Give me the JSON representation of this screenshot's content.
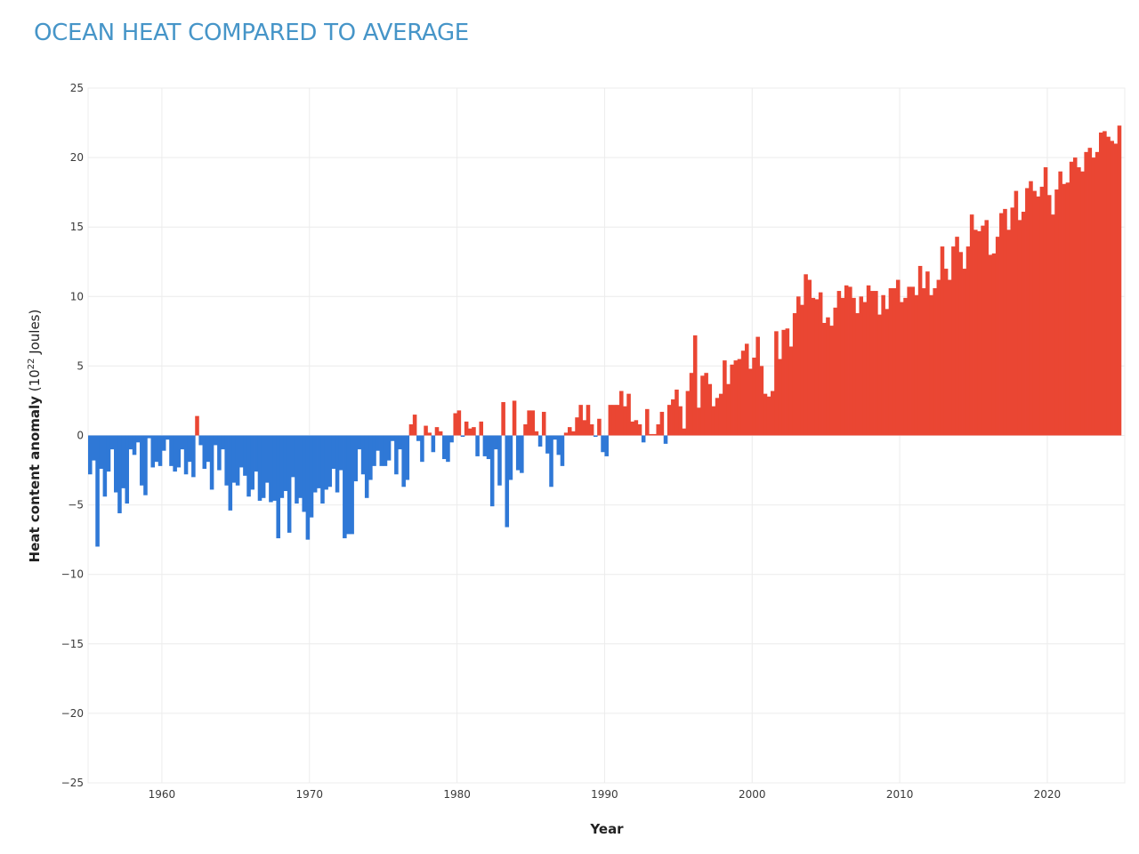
{
  "chart_data": {
    "type": "bar",
    "title": "OCEAN HEAT COMPARED TO AVERAGE",
    "xlabel": "Year",
    "ylabel_main": "Heat content anomaly",
    "ylabel_unit_prefix": "(10",
    "ylabel_unit_exp": "22",
    "ylabel_unit_suffix": " Joules)",
    "xlim": [
      1955.0,
      2025.25
    ],
    "ylim": [
      -25,
      25
    ],
    "x_ticks": [
      1960,
      1970,
      1980,
      1990,
      2000,
      2010,
      2020
    ],
    "x_tick_labels": [
      "1960",
      "1970",
      "1980",
      "1990",
      "2000",
      "2010",
      "2020"
    ],
    "y_ticks": [
      25,
      20,
      15,
      10,
      5,
      0,
      -5,
      -10,
      -15,
      -20,
      -25
    ],
    "y_tick_labels": [
      "25",
      "20",
      "15",
      "10",
      "5",
      "0",
      "−5",
      "−10",
      "−15",
      "−20",
      "−25"
    ],
    "grid": true,
    "bar_step_years": 0.25,
    "start_year": 1955.0,
    "colors": {
      "positive": "#ea4633",
      "negative": "#2f78d6",
      "grid": "#ececec",
      "title": "#4695c8"
    },
    "values": [
      -2.8,
      -1.8,
      -8.0,
      -2.4,
      -4.4,
      -2.6,
      -1.0,
      -4.1,
      -5.6,
      -3.8,
      -4.9,
      -1.0,
      -1.4,
      -0.5,
      -3.6,
      -4.3,
      -0.2,
      -2.3,
      -1.9,
      -2.2,
      -1.1,
      -0.3,
      -2.2,
      -2.6,
      -2.3,
      -1.0,
      -2.8,
      -1.9,
      -3.0,
      1.4,
      -0.7,
      -2.4,
      -1.9,
      -3.9,
      -0.7,
      -2.5,
      -1.0,
      -3.6,
      -5.4,
      -3.4,
      -3.6,
      -2.3,
      -2.9,
      -4.4,
      -3.9,
      -2.6,
      -4.7,
      -4.5,
      -3.4,
      -4.8,
      -4.7,
      -7.4,
      -4.5,
      -4.0,
      -7.0,
      -3.0,
      -4.9,
      -4.5,
      -5.5,
      -7.5,
      -5.9,
      -4.1,
      -3.8,
      -4.9,
      -3.9,
      -3.7,
      -2.4,
      -4.1,
      -2.5,
      -7.4,
      -7.1,
      -7.1,
      -3.3,
      -1.0,
      -2.8,
      -4.5,
      -3.2,
      -2.2,
      -1.1,
      -2.2,
      -2.2,
      -1.8,
      -0.4,
      -2.8,
      -1.0,
      -3.7,
      -3.2,
      0.8,
      1.5,
      -0.4,
      -1.9,
      0.7,
      0.2,
      -1.2,
      0.6,
      0.3,
      -1.7,
      -1.9,
      -0.5,
      1.6,
      1.8,
      -0.1,
      1.0,
      0.5,
      0.6,
      -1.5,
      1.0,
      -1.5,
      -1.7,
      -5.1,
      -1.0,
      -3.6,
      2.4,
      -6.6,
      -3.2,
      2.5,
      -2.5,
      -2.7,
      0.8,
      1.8,
      1.8,
      0.3,
      -0.8,
      1.7,
      -1.3,
      -3.7,
      -0.3,
      -1.4,
      -2.2,
      0.2,
      0.6,
      0.3,
      1.3,
      2.2,
      1.1,
      2.2,
      0.8,
      -0.1,
      1.2,
      -1.2,
      -1.5,
      2.2,
      2.2,
      2.2,
      3.2,
      2.1,
      3.0,
      1.0,
      1.1,
      0.8,
      -0.5,
      1.9,
      0.1,
      0.1,
      0.8,
      1.7,
      -0.6,
      2.2,
      2.6,
      3.3,
      2.1,
      0.5,
      3.2,
      4.5,
      7.2,
      2.0,
      4.3,
      4.5,
      3.7,
      2.1,
      2.7,
      3.0,
      5.4,
      3.7,
      5.1,
      5.4,
      5.5,
      6.1,
      6.6,
      4.8,
      5.6,
      7.1,
      5.0,
      3.0,
      2.8,
      3.2,
      7.5,
      5.5,
      7.6,
      7.7,
      6.4,
      8.8,
      10.0,
      9.4,
      11.6,
      11.2,
      9.9,
      9.8,
      10.3,
      8.1,
      8.5,
      7.9,
      9.2,
      10.4,
      9.9,
      10.8,
      10.7,
      9.9,
      8.8,
      10.0,
      9.6,
      10.8,
      10.4,
      10.4,
      8.7,
      10.1,
      9.1,
      10.6,
      10.6,
      11.2,
      9.6,
      9.9,
      10.7,
      10.7,
      10.1,
      12.2,
      10.6,
      11.8,
      10.1,
      10.6,
      11.2,
      13.6,
      12.0,
      11.2,
      13.6,
      14.3,
      13.2,
      12.0,
      13.6,
      15.9,
      14.8,
      14.7,
      15.1,
      15.5,
      13.0,
      13.1,
      14.3,
      16.0,
      16.3,
      14.8,
      16.4,
      17.6,
      15.5,
      16.1,
      17.8,
      18.3,
      17.6,
      17.2,
      17.9,
      19.3,
      17.3,
      15.9,
      17.7,
      19.0,
      18.1,
      18.2,
      19.7,
      20.0,
      19.3,
      19.0,
      20.4,
      20.7,
      20.0,
      20.4,
      21.8,
      21.9,
      21.5,
      21.2,
      21.0,
      22.3
    ]
  }
}
